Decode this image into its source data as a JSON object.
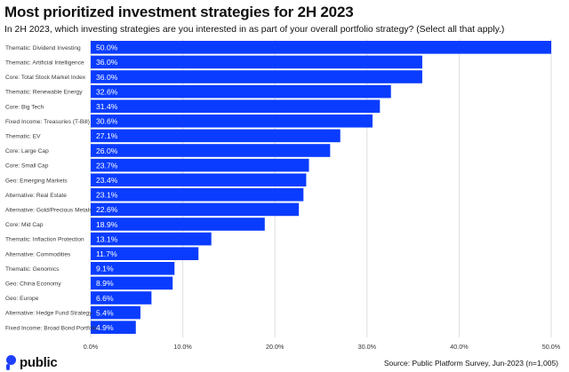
{
  "header": {
    "title": "Most prioritized investment strategies for 2H 2023",
    "subtitle": "In 2H 2023, which investing strategies are you interested in as part of your overall portfolio strategy? (Select all that apply.)"
  },
  "footer": {
    "brand": "public",
    "source": "Source: Public Platform Survey, Jun-2023 (n=1,005)"
  },
  "colors": {
    "bar": "#0a3cff",
    "grid": "#dedede",
    "bar_label": "#ffffff",
    "category_label": "#3a3a3a",
    "brand": "#1f3fff"
  },
  "chart_data": {
    "type": "bar",
    "orientation": "horizontal",
    "title": "Most prioritized investment strategies for 2H 2023",
    "xlabel": "",
    "ylabel": "",
    "xlim": [
      0,
      50
    ],
    "grid": true,
    "ticks": [
      0,
      10,
      20,
      30,
      40,
      50
    ],
    "tick_labels": [
      "0.0%",
      "10.0%",
      "20.0%",
      "30.0%",
      "40.0%",
      "50.0%"
    ],
    "categories": [
      "Thematic: Dividend Investing",
      "Thematic: Artificial Intelligence",
      "Core: Total Stock Market Index",
      "Thematic: Renewable Energy",
      "Core: Big Tech",
      "Fixed Income: Treasuries (T-Bill)",
      "Thematic: EV",
      "Core: Large Cap",
      "Core: Small Cap",
      "Geo: Emerging Markets",
      "Alternative: Real Estate",
      "Alternative: Gold/Precious Metals",
      "Core: Mid Cap",
      "Thematic: Inflaction Protection",
      "Alternative: Commodities",
      "Thematic: Genomics",
      "Geo: China Economy",
      "Geo: Europe",
      "Alternative: Hedge Fund Strategy",
      "Fixed Income: Broad Bond Portfolio"
    ],
    "values": [
      50.0,
      36.0,
      36.0,
      32.6,
      31.4,
      30.6,
      27.1,
      26.0,
      23.7,
      23.4,
      23.1,
      22.6,
      18.9,
      13.1,
      11.7,
      9.1,
      8.9,
      6.6,
      5.4,
      4.9
    ],
    "value_labels": [
      "50.0%",
      "36.0%",
      "36.0%",
      "32.6%",
      "31.4%",
      "30.6%",
      "27.1%",
      "26.0%",
      "23.7%",
      "23.4%",
      "23.1%",
      "22.6%",
      "18.9%",
      "13.1%",
      "11.7%",
      "9.1%",
      "8.9%",
      "6.6%",
      "5.4%",
      "4.9%"
    ]
  }
}
